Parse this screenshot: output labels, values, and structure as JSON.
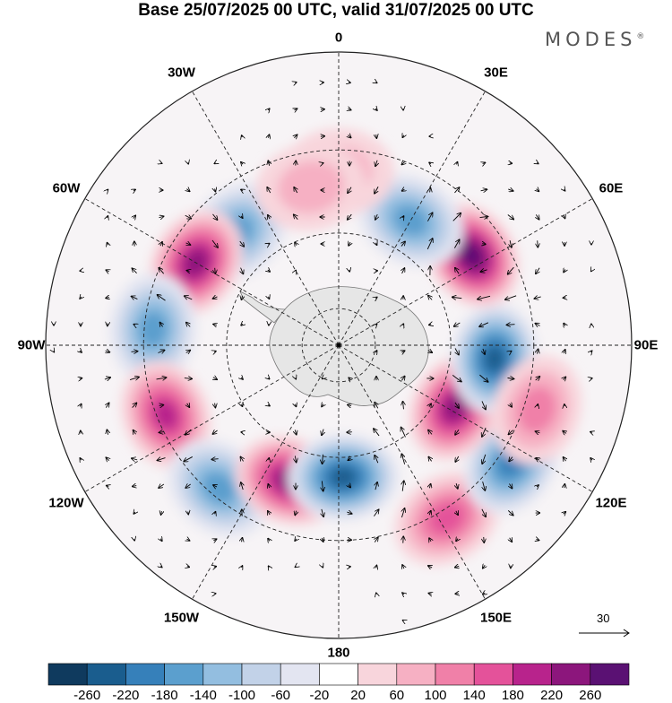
{
  "title": "Base 25/07/2025 00 UTC, valid 31/07/2025 00 UTC",
  "brand": "MODES",
  "brand_mark": "®",
  "longitude_labels": [
    "0",
    "30E",
    "60E",
    "90E",
    "120E",
    "150E",
    "180",
    "150W",
    "120W",
    "90W",
    "60W",
    "30W"
  ],
  "vector_reference": "30",
  "colorbar": {
    "labels": [
      "-260",
      "-220",
      "-180",
      "-140",
      "-100",
      "-60",
      "-20",
      "20",
      "60",
      "100",
      "140",
      "180",
      "220",
      "260"
    ],
    "colors": [
      "#0f3a5e",
      "#1a5d8e",
      "#3680ba",
      "#5b9fce",
      "#93bee0",
      "#c2d2e8",
      "#e3e5f1",
      "#ffffff",
      "#f8d5dc",
      "#f6b0c3",
      "#f080a8",
      "#e4529a",
      "#b8238c",
      "#8c167c",
      "#5a1173"
    ]
  },
  "map_data": {
    "projection": "south-polar-stereographic",
    "anomaly_centers": [
      {
        "lon": -42,
        "lat": -50,
        "value": -160
      },
      {
        "lon": -60,
        "lat": -47,
        "value": 250
      },
      {
        "lon": -85,
        "lat": -42,
        "value": -150
      },
      {
        "lon": -112,
        "lat": -42,
        "value": 200
      },
      {
        "lon": -140,
        "lat": -42,
        "value": -150
      },
      {
        "lon": -160,
        "lat": -52,
        "value": 220
      },
      {
        "lon": 178,
        "lat": -55,
        "value": -240
      },
      {
        "lon": 148,
        "lat": -38,
        "value": 150
      },
      {
        "lon": 124,
        "lat": -37,
        "value": -190
      },
      {
        "lon": 118,
        "lat": -55,
        "value": 250
      },
      {
        "lon": 95,
        "lat": -49,
        "value": -230
      },
      {
        "lon": 56,
        "lat": -48,
        "value": 270
      },
      {
        "lon": 30,
        "lat": -52,
        "value": -150
      },
      {
        "lon": 0,
        "lat": -45,
        "value": 80
      },
      {
        "lon": 108,
        "lat": -37,
        "value": 100
      },
      {
        "lon": -10,
        "lat": -48,
        "value": 70
      }
    ]
  }
}
